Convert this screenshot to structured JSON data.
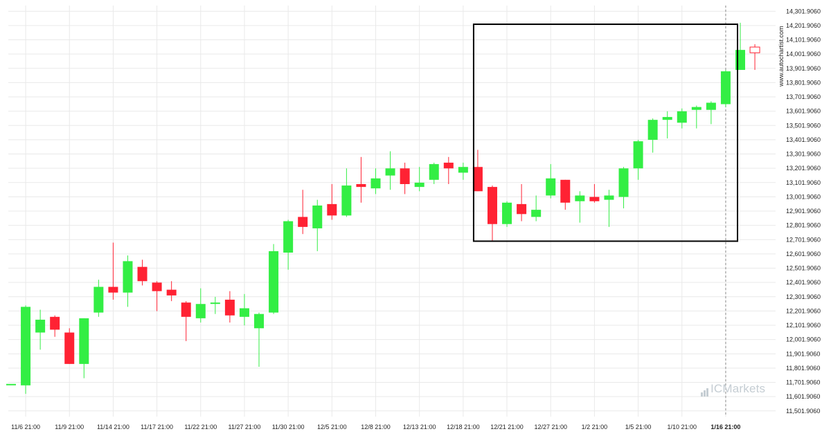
{
  "watermark": "www.autochartist.com",
  "brand": {
    "prefix": "IC",
    "name": "Markets"
  },
  "colors": {
    "up": "#33ee44",
    "down": "#ff2233",
    "grid": "#e9e9e9",
    "box": "#000000",
    "axis_text": "#222222",
    "brand": "#c5cdd3"
  },
  "chart_data": {
    "type": "candlestick",
    "ylim": [
      11461.906,
      14341.906
    ],
    "y_ticks": [
      "11,501.9060",
      "11,601.9060",
      "11,701.9060",
      "11,801.9060",
      "11,901.9060",
      "12,001.9060",
      "12,101.9060",
      "12,201.9060",
      "12,301.9060",
      "12,401.9060",
      "12,501.9060",
      "12,601.9060",
      "12,701.9060",
      "12,801.9060",
      "12,901.9060",
      "13,001.9060",
      "13,101.9060",
      "13,201.9060",
      "13,301.9060",
      "13,401.9060",
      "13,501.9060",
      "13,601.9060",
      "13,701.9060",
      "13,801.9060",
      "13,901.9060",
      "14,001.9060",
      "14,101.9060",
      "14,201.9060",
      "14,301.9060"
    ],
    "x_tick_labels": [
      {
        "label": "11/6 21:00",
        "index": 1
      },
      {
        "label": "11/9 21:00",
        "index": 4
      },
      {
        "label": "11/14 21:00",
        "index": 7
      },
      {
        "label": "11/17 21:00",
        "index": 10
      },
      {
        "label": "11/22 21:00",
        "index": 13
      },
      {
        "label": "11/27 21:00",
        "index": 16
      },
      {
        "label": "11/30 21:00",
        "index": 19
      },
      {
        "label": "12/5 21:00",
        "index": 22
      },
      {
        "label": "12/8 21:00",
        "index": 25
      },
      {
        "label": "12/13 21:00",
        "index": 28
      },
      {
        "label": "12/18 21:00",
        "index": 31
      },
      {
        "label": "12/21 21:00",
        "index": 34
      },
      {
        "label": "12/27 21:00",
        "index": 37
      },
      {
        "label": "1/2 21:00",
        "index": 40
      },
      {
        "label": "1/5 21:00",
        "index": 43
      },
      {
        "label": "1/10 21:00",
        "index": 46
      },
      {
        "label": "1/16 21:00",
        "index": 49,
        "bold": true
      }
    ],
    "vline_index": 49,
    "candles": [
      {
        "o": 11691,
        "h": 11691,
        "l": 11691,
        "c": 11691
      },
      {
        "o": 11681,
        "h": 12241,
        "l": 11621,
        "c": 12231
      },
      {
        "o": 12051,
        "h": 12211,
        "l": 11931,
        "c": 12141
      },
      {
        "o": 12161,
        "h": 12171,
        "l": 12021,
        "c": 12071
      },
      {
        "o": 12051,
        "h": 12081,
        "l": 11831,
        "c": 11831
      },
      {
        "o": 11831,
        "h": 12151,
        "l": 11731,
        "c": 12151
      },
      {
        "o": 12191,
        "h": 12421,
        "l": 12161,
        "c": 12371
      },
      {
        "o": 12371,
        "h": 12681,
        "l": 12281,
        "c": 12331
      },
      {
        "o": 12331,
        "h": 12591,
        "l": 12231,
        "c": 12551
      },
      {
        "o": 12511,
        "h": 12561,
        "l": 12381,
        "c": 12411
      },
      {
        "o": 12401,
        "h": 12411,
        "l": 12201,
        "c": 12341
      },
      {
        "o": 12351,
        "h": 12411,
        "l": 12271,
        "c": 12311
      },
      {
        "o": 12261,
        "h": 12271,
        "l": 11991,
        "c": 12161
      },
      {
        "o": 12151,
        "h": 12361,
        "l": 12121,
        "c": 12251
      },
      {
        "o": 12261,
        "h": 12301,
        "l": 12181,
        "c": 12261
      },
      {
        "o": 12281,
        "h": 12341,
        "l": 12121,
        "c": 12171
      },
      {
        "o": 12161,
        "h": 12321,
        "l": 12101,
        "c": 12221
      },
      {
        "o": 12081,
        "h": 12191,
        "l": 11811,
        "c": 12181
      },
      {
        "o": 12191,
        "h": 12671,
        "l": 12181,
        "c": 12621
      },
      {
        "o": 12611,
        "h": 12841,
        "l": 12491,
        "c": 12831
      },
      {
        "o": 12861,
        "h": 13051,
        "l": 12741,
        "c": 12791
      },
      {
        "o": 12781,
        "h": 12981,
        "l": 12621,
        "c": 12941
      },
      {
        "o": 12951,
        "h": 13091,
        "l": 12841,
        "c": 12871
      },
      {
        "o": 12871,
        "h": 13201,
        "l": 12861,
        "c": 13081
      },
      {
        "o": 13091,
        "h": 13281,
        "l": 12961,
        "c": 13071
      },
      {
        "o": 13061,
        "h": 13201,
        "l": 13021,
        "c": 13131
      },
      {
        "o": 13151,
        "h": 13321,
        "l": 13051,
        "c": 13201
      },
      {
        "o": 13201,
        "h": 13241,
        "l": 13021,
        "c": 13091
      },
      {
        "o": 13071,
        "h": 13211,
        "l": 13041,
        "c": 13101
      },
      {
        "o": 13121,
        "h": 13241,
        "l": 13091,
        "c": 13231
      },
      {
        "o": 13241,
        "h": 13281,
        "l": 13091,
        "c": 13201
      },
      {
        "o": 13171,
        "h": 13241,
        "l": 13121,
        "c": 13211
      },
      {
        "o": 13211,
        "h": 13331,
        "l": 13041,
        "c": 13041
      },
      {
        "o": 13071,
        "h": 13081,
        "l": 12691,
        "c": 12811
      },
      {
        "o": 12811,
        "h": 12971,
        "l": 12791,
        "c": 12961
      },
      {
        "o": 12951,
        "h": 13091,
        "l": 12831,
        "c": 12881
      },
      {
        "o": 12861,
        "h": 13011,
        "l": 12831,
        "c": 12911
      },
      {
        "o": 13011,
        "h": 13231,
        "l": 12991,
        "c": 13131
      },
      {
        "o": 13121,
        "h": 13121,
        "l": 12911,
        "c": 12961
      },
      {
        "o": 12971,
        "h": 13041,
        "l": 12821,
        "c": 13011
      },
      {
        "o": 13001,
        "h": 13091,
        "l": 12961,
        "c": 12971
      },
      {
        "o": 12981,
        "h": 13051,
        "l": 12791,
        "c": 13011
      },
      {
        "o": 13001,
        "h": 13211,
        "l": 12921,
        "c": 13201
      },
      {
        "o": 13201,
        "h": 13401,
        "l": 13121,
        "c": 13391
      },
      {
        "o": 13401,
        "h": 13551,
        "l": 13311,
        "c": 13541
      },
      {
        "o": 13541,
        "h": 13601,
        "l": 13411,
        "c": 13561
      },
      {
        "o": 13521,
        "h": 13621,
        "l": 13481,
        "c": 13601
      },
      {
        "o": 13611,
        "h": 13641,
        "l": 13481,
        "c": 13631
      },
      {
        "o": 13611,
        "h": 13671,
        "l": 13511,
        "c": 13661
      },
      {
        "o": 13651,
        "h": 13891,
        "l": 13631,
        "c": 13881
      },
      {
        "o": 13891,
        "h": 14221,
        "l": 13891,
        "c": 14031
      },
      {
        "o": 14051,
        "h": 14071,
        "l": 13891,
        "c": 14011
      }
    ],
    "box": {
      "start_index": 32,
      "end_index": 50,
      "top": 14211,
      "bottom": 12691
    }
  }
}
